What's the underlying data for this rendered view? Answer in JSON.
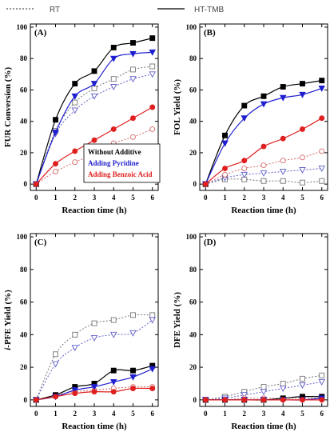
{
  "legend": {
    "items": [
      {
        "label": "RT",
        "style": "dotted"
      },
      {
        "label": "HT-TMB",
        "style": "solid"
      }
    ]
  },
  "additives": {
    "items": [
      {
        "label": "Without Additive",
        "color": "#000000",
        "marker": "square"
      },
      {
        "label": "Adding Pyridine",
        "color": "#1f1fd0",
        "marker": "triangle-down"
      },
      {
        "label": "Adding Benzoic Acid",
        "color": "#e01f1f",
        "marker": "circle"
      }
    ]
  },
  "chart_data": [
    {
      "type": "line",
      "panel": "(A)",
      "xlabel": "Reaction time (h)",
      "ylabel": "FUR Conversion (%)",
      "xlim": [
        -0.3,
        6.3
      ],
      "ylim": [
        -4,
        102
      ],
      "xticks": [
        0,
        1,
        2,
        3,
        4,
        5,
        6
      ],
      "yticks": [
        0,
        20,
        40,
        60,
        80,
        100
      ],
      "x": [
        0,
        1,
        2,
        3,
        4,
        5,
        6
      ],
      "series": [
        {
          "name": "Without Additive",
          "condition": "HT-TMB",
          "values": [
            0,
            41,
            64,
            72,
            87,
            90,
            93
          ]
        },
        {
          "name": "Adding Pyridine",
          "condition": "HT-TMB",
          "values": [
            0,
            33,
            56,
            64,
            80,
            83,
            84
          ]
        },
        {
          "name": "Adding Benzoic Acid",
          "condition": "HT-TMB",
          "values": [
            0,
            13,
            21,
            28,
            35,
            42,
            49
          ]
        },
        {
          "name": "Without Additive",
          "condition": "RT",
          "values": [
            0,
            34,
            52,
            61,
            67,
            73,
            75
          ]
        },
        {
          "name": "Adding Pyridine",
          "condition": "RT",
          "values": [
            0,
            32,
            47,
            56,
            62,
            67,
            70
          ]
        },
        {
          "name": "Adding Benzoic Acid",
          "condition": "RT",
          "values": [
            0,
            8,
            14,
            19,
            26,
            30,
            35
          ]
        }
      ]
    },
    {
      "type": "line",
      "panel": "(B)",
      "xlabel": "Reaction time (h)",
      "ylabel": "FOL Yield (%)",
      "xlim": [
        -0.3,
        6.3
      ],
      "ylim": [
        -4,
        102
      ],
      "xticks": [
        0,
        1,
        2,
        3,
        4,
        5,
        6
      ],
      "yticks": [
        0,
        20,
        40,
        60,
        80,
        100
      ],
      "x": [
        0,
        1,
        2,
        3,
        4,
        5,
        6
      ],
      "series": [
        {
          "name": "Without Additive",
          "condition": "HT-TMB",
          "values": [
            0,
            31,
            50,
            56,
            62,
            64,
            66
          ]
        },
        {
          "name": "Adding Pyridine",
          "condition": "HT-TMB",
          "values": [
            0,
            26,
            42,
            51,
            55,
            57,
            61
          ]
        },
        {
          "name": "Adding Benzoic Acid",
          "condition": "HT-TMB",
          "values": [
            0,
            10,
            15,
            24,
            29,
            35,
            42
          ]
        },
        {
          "name": "Without Additive",
          "condition": "RT",
          "values": [
            0,
            3,
            3,
            2,
            2,
            1,
            2
          ]
        },
        {
          "name": "Adding Pyridine",
          "condition": "RT",
          "values": [
            0,
            4,
            6,
            7,
            8,
            9,
            10
          ]
        },
        {
          "name": "Adding Benzoic Acid",
          "condition": "RT",
          "values": [
            0,
            6,
            10,
            12,
            15,
            17,
            21
          ]
        }
      ]
    },
    {
      "type": "line",
      "panel": "(C)",
      "xlabel": "Reaction time (h)",
      "ylabel": "i-PFE Yield (%)",
      "xlim": [
        -0.3,
        6.3
      ],
      "ylim": [
        -4,
        102
      ],
      "xticks": [
        0,
        1,
        2,
        3,
        4,
        5,
        6
      ],
      "yticks": [
        0,
        20,
        40,
        60,
        80,
        100
      ],
      "x": [
        0,
        1,
        2,
        3,
        4,
        5,
        6
      ],
      "series": [
        {
          "name": "Without Additive",
          "condition": "HT-TMB",
          "values": [
            0,
            3,
            8,
            10,
            18,
            18,
            21
          ]
        },
        {
          "name": "Adding Pyridine",
          "condition": "HT-TMB",
          "values": [
            0,
            2,
            6,
            8,
            11,
            14,
            19
          ]
        },
        {
          "name": "Adding Benzoic Acid",
          "condition": "HT-TMB",
          "values": [
            0,
            2,
            4,
            5,
            5,
            7,
            7
          ]
        },
        {
          "name": "Without Additive",
          "condition": "RT",
          "values": [
            0,
            28,
            40,
            47,
            49,
            52,
            52
          ]
        },
        {
          "name": "Adding Pyridine",
          "condition": "RT",
          "values": [
            0,
            22,
            32,
            38,
            40,
            41,
            49
          ]
        },
        {
          "name": "Adding Benzoic Acid",
          "condition": "RT",
          "values": [
            0,
            3,
            5,
            6,
            7,
            8,
            8
          ]
        }
      ]
    },
    {
      "type": "line",
      "panel": "(D)",
      "xlabel": "Reaction time (h)",
      "ylabel": "DFE Yield (%)",
      "xlim": [
        -0.3,
        6.3
      ],
      "ylim": [
        -4,
        102
      ],
      "xticks": [
        0,
        1,
        2,
        3,
        4,
        5,
        6
      ],
      "yticks": [
        0,
        20,
        40,
        60,
        80,
        100
      ],
      "x": [
        0,
        1,
        2,
        3,
        4,
        5,
        6
      ],
      "series": [
        {
          "name": "Without Additive",
          "condition": "HT-TMB",
          "values": [
            0,
            0,
            0,
            0,
            1,
            2,
            2
          ]
        },
        {
          "name": "Adding Pyridine",
          "condition": "HT-TMB",
          "values": [
            0,
            0,
            0,
            0,
            0,
            0,
            1
          ]
        },
        {
          "name": "Adding Benzoic Acid",
          "condition": "HT-TMB",
          "values": [
            0,
            0,
            0,
            0,
            0,
            0,
            0
          ]
        },
        {
          "name": "Without Additive",
          "condition": "RT",
          "values": [
            0,
            2,
            5,
            8,
            10,
            13,
            15
          ]
        },
        {
          "name": "Adding Pyridine",
          "condition": "RT",
          "values": [
            0,
            1,
            3,
            5,
            7,
            9,
            11
          ]
        },
        {
          "name": "Adding Benzoic Acid",
          "condition": "RT",
          "values": [
            0,
            0,
            1,
            1,
            1,
            1,
            1
          ]
        }
      ]
    }
  ]
}
